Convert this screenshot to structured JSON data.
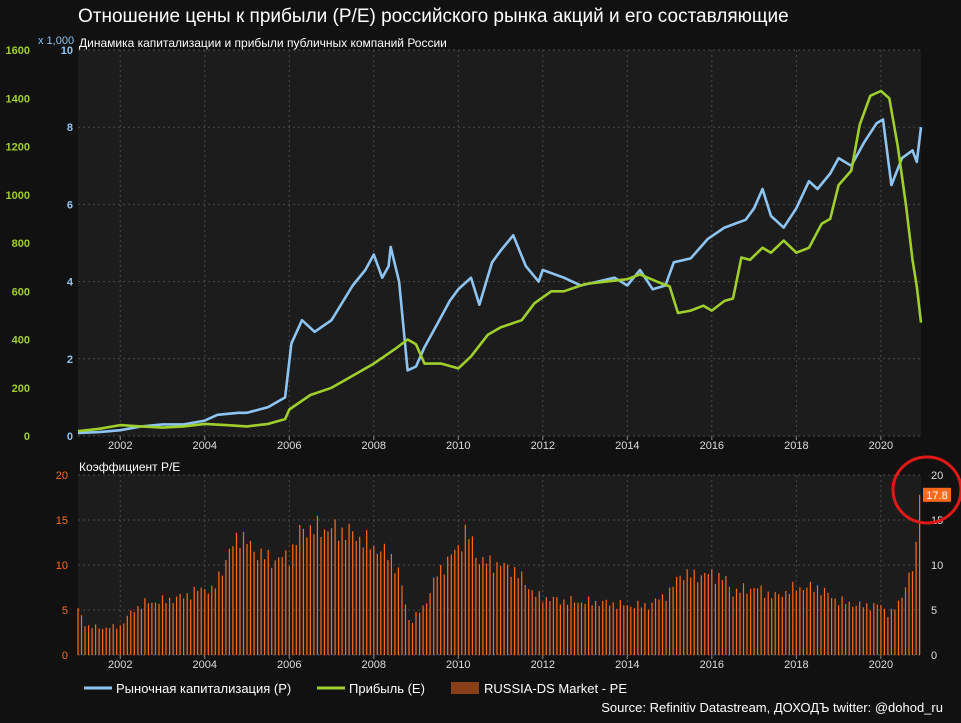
{
  "title": "Отношение цены к прибыли (P/E) российского рынка акций и его составляющие",
  "source": "Source: Refinitiv Datastream, ДОХОДЪ twitter: @dohod_ru",
  "colors": {
    "cap": "#8ec4f2",
    "earn": "#9fcf2c",
    "pe": "#ff6a1a",
    "bg": "#1c1c1c",
    "grid": "#4a4a4a",
    "circle": "#e01818"
  },
  "chart_data": [
    {
      "type": "line",
      "title": "Динамика капитализации и прибыли публичных компаний России",
      "x_range": [
        2001.0,
        2020.95
      ],
      "x_ticks": [
        "2002",
        "2004",
        "2006",
        "2008",
        "2010",
        "2012",
        "2014",
        "2016",
        "2018",
        "2020"
      ],
      "y_left": {
        "range": [
          0,
          1600
        ],
        "ticks": [
          "0",
          "200",
          "400",
          "600",
          "800",
          "1000",
          "1200",
          "1400",
          "1600"
        ],
        "color": "#9fcf2c"
      },
      "y_right": {
        "range": [
          0,
          10
        ],
        "ticks": [
          "0",
          "2",
          "4",
          "6",
          "8",
          "10"
        ],
        "multiplier_label": "x 1,000",
        "color": "#8ec4f2"
      },
      "series": [
        {
          "name": "Рыночная капитализация (P)",
          "axis": "right",
          "points": [
            [
              2001.0,
              0.08
            ],
            [
              2001.5,
              0.1
            ],
            [
              2002.0,
              0.15
            ],
            [
              2002.5,
              0.25
            ],
            [
              2003.0,
              0.3
            ],
            [
              2003.5,
              0.3
            ],
            [
              2004.0,
              0.4
            ],
            [
              2004.3,
              0.55
            ],
            [
              2004.8,
              0.6
            ],
            [
              2005.0,
              0.6
            ],
            [
              2005.5,
              0.75
            ],
            [
              2005.9,
              1.0
            ],
            [
              2006.05,
              2.4
            ],
            [
              2006.3,
              3.0
            ],
            [
              2006.6,
              2.7
            ],
            [
              2007.0,
              3.0
            ],
            [
              2007.5,
              3.9
            ],
            [
              2007.8,
              4.3
            ],
            [
              2008.0,
              4.7
            ],
            [
              2008.2,
              4.1
            ],
            [
              2008.35,
              4.4
            ],
            [
              2008.4,
              4.9
            ],
            [
              2008.6,
              4.0
            ],
            [
              2008.8,
              1.7
            ],
            [
              2009.0,
              1.8
            ],
            [
              2009.2,
              2.3
            ],
            [
              2009.5,
              2.9
            ],
            [
              2009.8,
              3.5
            ],
            [
              2010.0,
              3.8
            ],
            [
              2010.3,
              4.1
            ],
            [
              2010.5,
              3.4
            ],
            [
              2010.8,
              4.5
            ],
            [
              2011.0,
              4.8
            ],
            [
              2011.3,
              5.2
            ],
            [
              2011.6,
              4.4
            ],
            [
              2011.9,
              4.0
            ],
            [
              2012.0,
              4.3
            ],
            [
              2012.5,
              4.1
            ],
            [
              2012.9,
              3.9
            ],
            [
              2013.3,
              4.0
            ],
            [
              2013.7,
              4.1
            ],
            [
              2014.0,
              3.9
            ],
            [
              2014.3,
              4.3
            ],
            [
              2014.6,
              3.8
            ],
            [
              2014.9,
              3.9
            ],
            [
              2015.1,
              4.5
            ],
            [
              2015.5,
              4.6
            ],
            [
              2015.9,
              5.1
            ],
            [
              2016.3,
              5.4
            ],
            [
              2016.8,
              5.6
            ],
            [
              2017.0,
              5.9
            ],
            [
              2017.2,
              6.4
            ],
            [
              2017.4,
              5.7
            ],
            [
              2017.7,
              5.4
            ],
            [
              2018.0,
              5.9
            ],
            [
              2018.3,
              6.6
            ],
            [
              2018.5,
              6.4
            ],
            [
              2018.8,
              6.8
            ],
            [
              2019.0,
              7.2
            ],
            [
              2019.3,
              7.0
            ],
            [
              2019.6,
              7.6
            ],
            [
              2019.9,
              8.1
            ],
            [
              2020.05,
              8.2
            ],
            [
              2020.25,
              6.5
            ],
            [
              2020.5,
              7.2
            ],
            [
              2020.75,
              7.4
            ],
            [
              2020.85,
              7.1
            ],
            [
              2020.95,
              8.0
            ]
          ]
        },
        {
          "name": "Прибыль (E)",
          "axis": "left",
          "points": [
            [
              2001.0,
              20
            ],
            [
              2001.5,
              30
            ],
            [
              2002.0,
              45
            ],
            [
              2002.5,
              40
            ],
            [
              2003.0,
              35
            ],
            [
              2003.5,
              40
            ],
            [
              2004.0,
              50
            ],
            [
              2004.5,
              45
            ],
            [
              2005.0,
              40
            ],
            [
              2005.5,
              50
            ],
            [
              2005.9,
              70
            ],
            [
              2006.0,
              110
            ],
            [
              2006.5,
              170
            ],
            [
              2007.0,
              200
            ],
            [
              2007.5,
              250
            ],
            [
              2008.0,
              300
            ],
            [
              2008.5,
              360
            ],
            [
              2008.8,
              400
            ],
            [
              2009.0,
              380
            ],
            [
              2009.2,
              300
            ],
            [
              2009.6,
              300
            ],
            [
              2010.0,
              280
            ],
            [
              2010.3,
              330
            ],
            [
              2010.7,
              420
            ],
            [
              2011.0,
              450
            ],
            [
              2011.5,
              480
            ],
            [
              2011.8,
              550
            ],
            [
              2012.2,
              600
            ],
            [
              2012.5,
              600
            ],
            [
              2013.0,
              630
            ],
            [
              2013.5,
              640
            ],
            [
              2014.0,
              650
            ],
            [
              2014.3,
              670
            ],
            [
              2014.7,
              640
            ],
            [
              2015.0,
              620
            ],
            [
              2015.2,
              510
            ],
            [
              2015.5,
              520
            ],
            [
              2015.8,
              540
            ],
            [
              2016.0,
              520
            ],
            [
              2016.3,
              560
            ],
            [
              2016.5,
              570
            ],
            [
              2016.7,
              740
            ],
            [
              2016.9,
              730
            ],
            [
              2017.2,
              780
            ],
            [
              2017.4,
              760
            ],
            [
              2017.7,
              810
            ],
            [
              2018.0,
              760
            ],
            [
              2018.3,
              780
            ],
            [
              2018.6,
              880
            ],
            [
              2018.8,
              900
            ],
            [
              2019.0,
              1040
            ],
            [
              2019.3,
              1100
            ],
            [
              2019.5,
              1290
            ],
            [
              2019.75,
              1410
            ],
            [
              2020.0,
              1430
            ],
            [
              2020.2,
              1400
            ],
            [
              2020.4,
              1200
            ],
            [
              2020.6,
              950
            ],
            [
              2020.75,
              730
            ],
            [
              2020.85,
              620
            ],
            [
              2020.95,
              470
            ]
          ]
        }
      ]
    },
    {
      "type": "bar",
      "title": "Коэффициент P/E",
      "series_name": "RUSSIA-DS Market - PE",
      "x_range": [
        2001.0,
        2020.95
      ],
      "x_ticks": [
        "2002",
        "2004",
        "2006",
        "2008",
        "2010",
        "2012",
        "2014",
        "2016",
        "2018",
        "2020"
      ],
      "y_range": [
        0,
        20
      ],
      "y_ticks": [
        "0",
        "5",
        "10",
        "15",
        "20"
      ],
      "last_value_label": "17.8",
      "keypoints": [
        [
          2001.0,
          5.0
        ],
        [
          2001.2,
          3.2
        ],
        [
          2001.6,
          3.0
        ],
        [
          2002.0,
          3.2
        ],
        [
          2002.3,
          5.0
        ],
        [
          2002.6,
          5.8
        ],
        [
          2003.0,
          6.0
        ],
        [
          2003.5,
          6.5
        ],
        [
          2004.0,
          7.5
        ],
        [
          2004.2,
          7.0
        ],
        [
          2004.35,
          9.0
        ],
        [
          2004.8,
          13.5
        ],
        [
          2005.2,
          11.5
        ],
        [
          2005.6,
          10.5
        ],
        [
          2006.0,
          11.0
        ],
        [
          2006.3,
          14.0
        ],
        [
          2006.6,
          14.0
        ],
        [
          2007.0,
          14.0
        ],
        [
          2007.5,
          13.5
        ],
        [
          2008.0,
          12.0
        ],
        [
          2008.4,
          11.0
        ],
        [
          2008.6,
          9.0
        ],
        [
          2008.85,
          3.5
        ],
        [
          2009.2,
          5.5
        ],
        [
          2009.5,
          9.0
        ],
        [
          2010.0,
          12.0
        ],
        [
          2010.2,
          13.8
        ],
        [
          2010.5,
          10.5
        ],
        [
          2011.0,
          10.0
        ],
        [
          2011.3,
          9.5
        ],
        [
          2011.6,
          8.0
        ],
        [
          2011.85,
          6.5
        ],
        [
          2012.5,
          6.0
        ],
        [
          2013.5,
          5.8
        ],
        [
          2014.0,
          5.5
        ],
        [
          2014.5,
          5.5
        ],
        [
          2015.0,
          7.0
        ],
        [
          2015.25,
          9.0
        ],
        [
          2015.6,
          8.8
        ],
        [
          2016.0,
          9.0
        ],
        [
          2016.3,
          8.5
        ],
        [
          2016.5,
          7.0
        ],
        [
          2017.0,
          7.5
        ],
        [
          2017.5,
          6.5
        ],
        [
          2018.0,
          7.5
        ],
        [
          2018.5,
          7.5
        ],
        [
          2019.0,
          6.0
        ],
        [
          2019.5,
          5.5
        ],
        [
          2020.0,
          5.5
        ],
        [
          2020.2,
          4.5
        ],
        [
          2020.4,
          5.5
        ],
        [
          2020.6,
          8.0
        ],
        [
          2020.8,
          10.0
        ],
        [
          2020.95,
          17.8
        ]
      ]
    }
  ]
}
